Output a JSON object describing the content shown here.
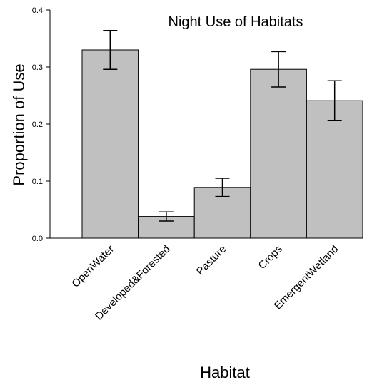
{
  "chart_data": {
    "type": "bar",
    "title": "Night Use of Habitats",
    "x_label": "Habitat",
    "y_label": "Proportion of Use",
    "categories": [
      "OpenWater",
      "Developed&Forested",
      "Pasture",
      "Crops",
      "EmergentWetland"
    ],
    "values": [
      0.33,
      0.038,
      0.089,
      0.296,
      0.241
    ],
    "errors": [
      0.034,
      0.008,
      0.016,
      0.031,
      0.035
    ],
    "color": "#c0c0c0",
    "ylim": [
      0,
      0.4
    ],
    "yticks": [
      {
        "value": 0,
        "label": "0.0"
      },
      0.1,
      0.2,
      0.3,
      0.4
    ],
    "grid": false
  }
}
